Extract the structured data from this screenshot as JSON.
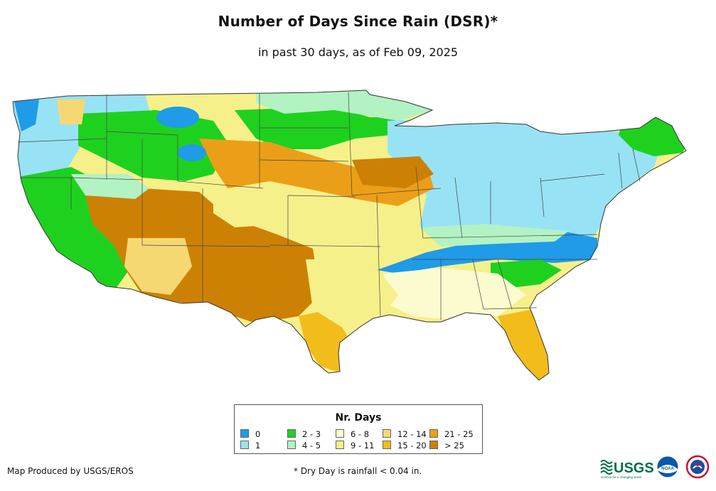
{
  "title": "Number of Days Since Rain (DSR)*",
  "subtitle": "in past 30 days, as of Feb 09, 2025",
  "legend": {
    "title": "Nr. Days",
    "items": [
      {
        "label": "0",
        "color": "#1f9be8"
      },
      {
        "label": "1",
        "color": "#98e2f6"
      },
      {
        "label": "2 - 3",
        "color": "#1fd11f"
      },
      {
        "label": "4 - 5",
        "color": "#b3f2c3"
      },
      {
        "label": "6 - 8",
        "color": "#fbfbcf"
      },
      {
        "label": "9 - 11",
        "color": "#f6f08a"
      },
      {
        "label": "12 - 14",
        "color": "#f6d873"
      },
      {
        "label": "15 - 20",
        "color": "#f2bc1b"
      },
      {
        "label": "21 - 25",
        "color": "#eb9f18"
      },
      {
        "label": "> 25",
        "color": "#cc8105"
      }
    ]
  },
  "footer": {
    "credit": "Map Produced by USGS/EROS",
    "footnote": "* Dry Day is rainfall < 0.04 in."
  },
  "logos": {
    "usgs": "USGS",
    "usgs_tagline": "science for a changing world",
    "noaa": "NOAA"
  }
}
